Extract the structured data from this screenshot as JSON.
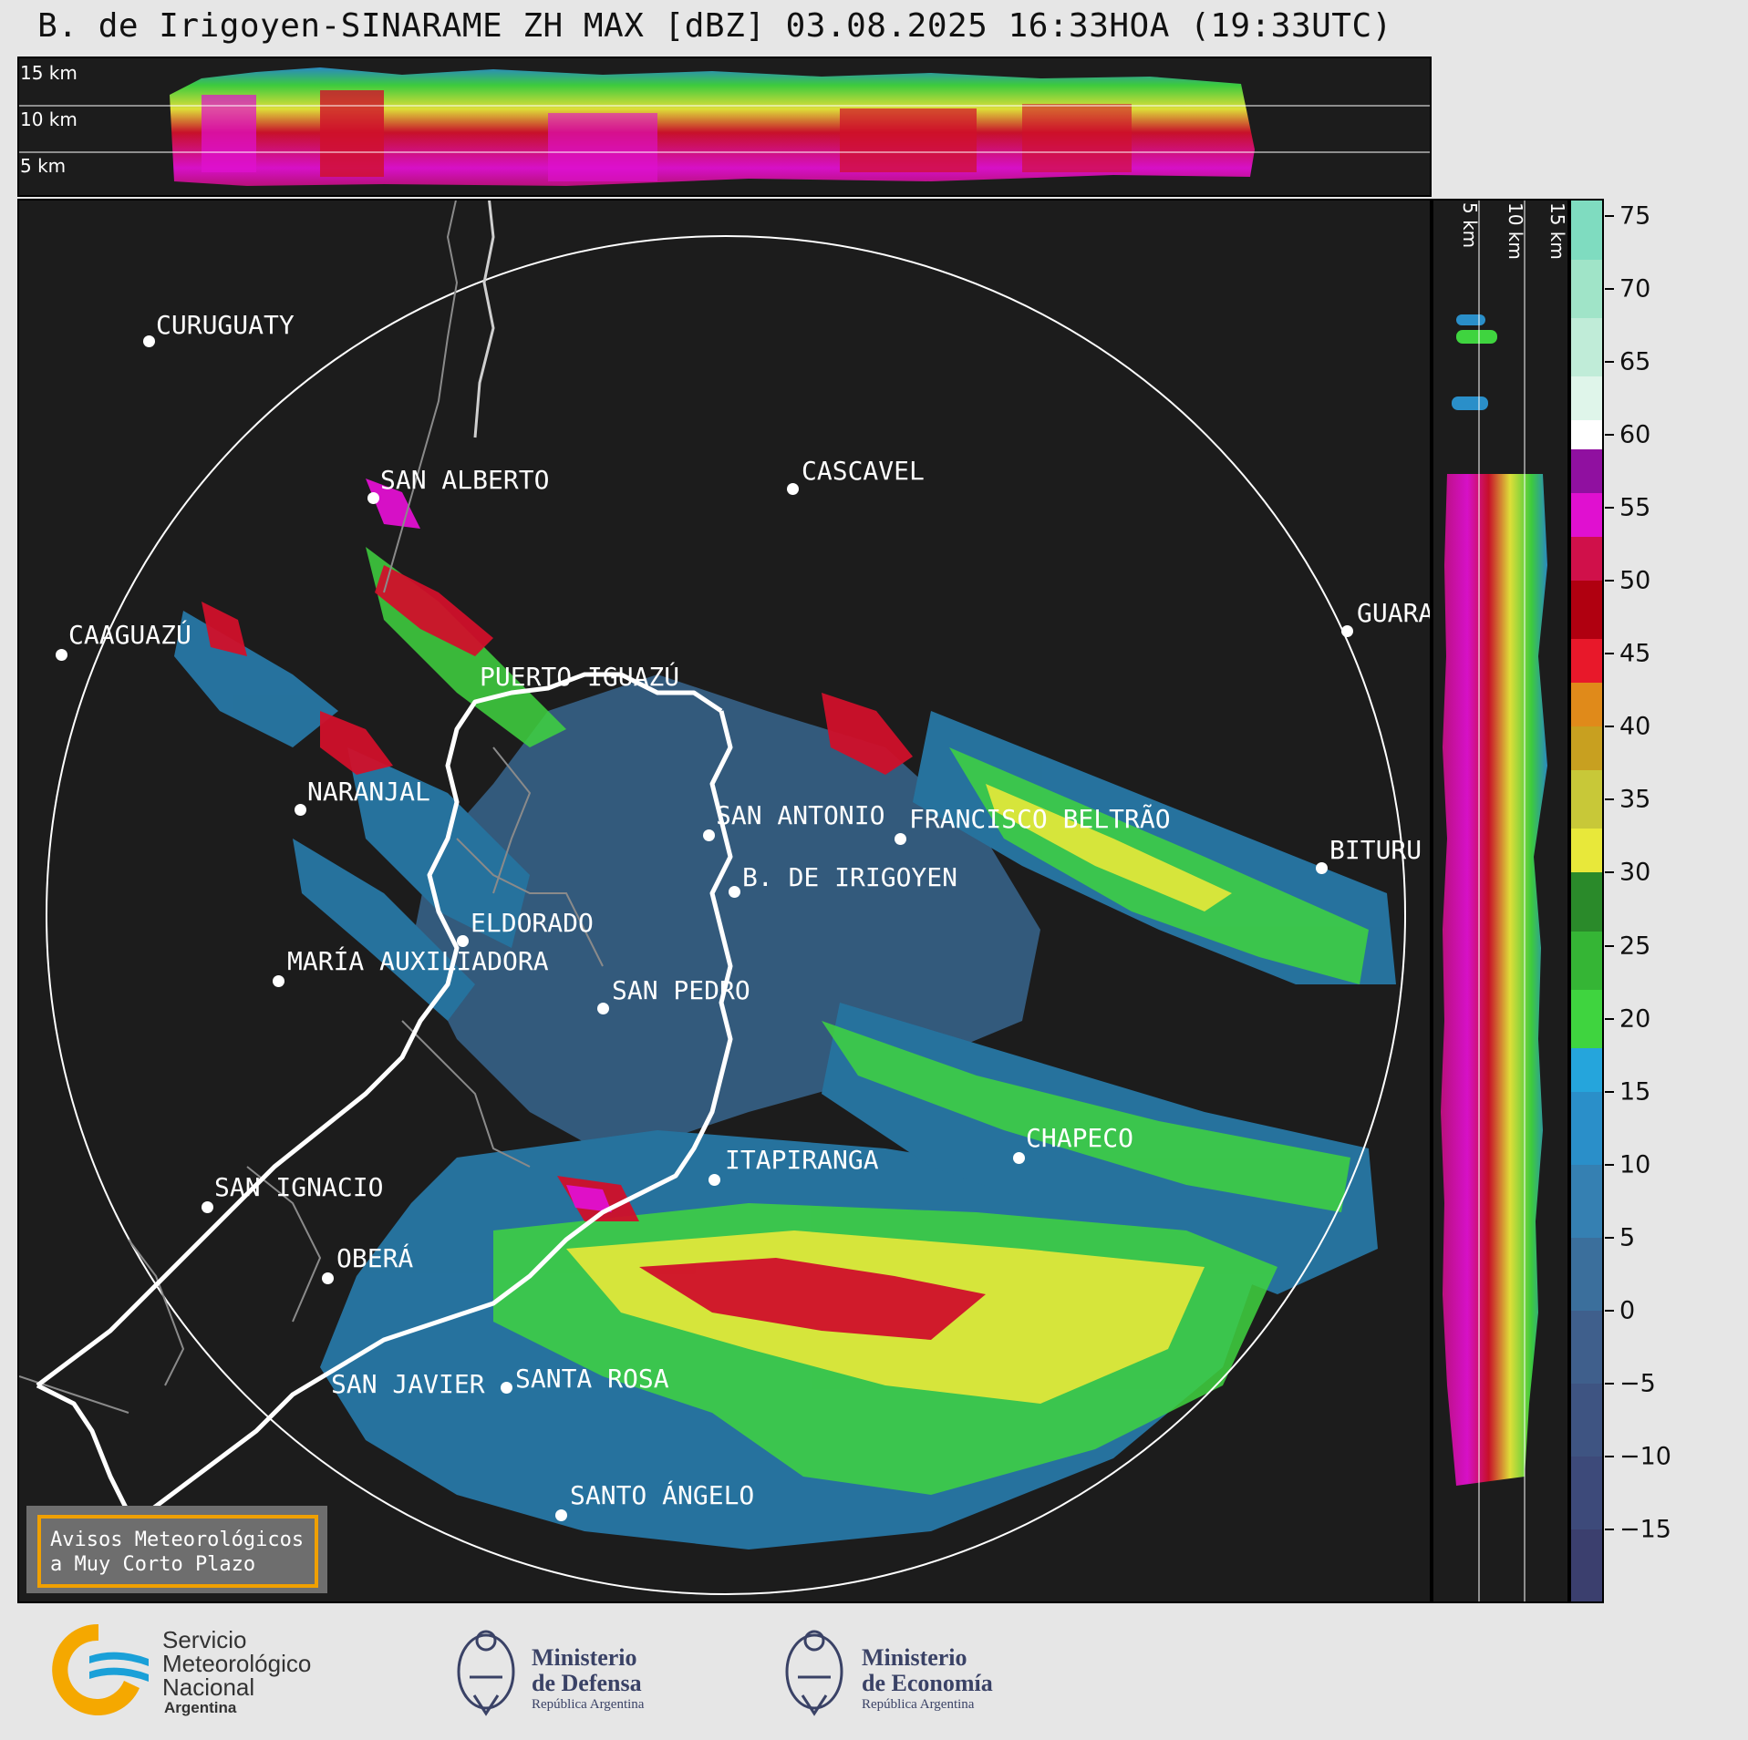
{
  "title": "B. de Irigoyen-SINARAME ZH MAX [dBZ] 03.08.2025 16:33HOA (19:33UTC)",
  "top_section": {
    "height_labels": [
      "15 km",
      "10 km",
      "5 km"
    ]
  },
  "side_section": {
    "height_labels": [
      "5 km",
      "10 km",
      "15 km"
    ]
  },
  "cities": [
    {
      "name": "CURUGUATY"
    },
    {
      "name": "SAN ALBERTO"
    },
    {
      "name": "CASCAVEL"
    },
    {
      "name": "CAAGUAZÚ"
    },
    {
      "name": "GUARA"
    },
    {
      "name": "PUERTO IGUAZÚ"
    },
    {
      "name": "NARANJAL"
    },
    {
      "name": "SAN ANTONIO"
    },
    {
      "name": "FRANCISCO BELTRÃO"
    },
    {
      "name": "BITURU"
    },
    {
      "name": "B. DE IRIGOYEN"
    },
    {
      "name": "ELDORADO"
    },
    {
      "name": "MARÍA AUXILIADORA"
    },
    {
      "name": "SAN PEDRO"
    },
    {
      "name": "CHAPECO"
    },
    {
      "name": "ITAPIRANGA"
    },
    {
      "name": "SAN IGNACIO"
    },
    {
      "name": "OBERÁ"
    },
    {
      "name": "SAN JAVIER"
    },
    {
      "name": "SANTA ROSA"
    },
    {
      "name": "SANTO ÁNGELO"
    }
  ],
  "colorbar": {
    "unit": "dBZ",
    "min": -20,
    "max": 76,
    "ticks": [
      "75",
      "70",
      "65",
      "60",
      "55",
      "50",
      "45",
      "40",
      "35",
      "30",
      "25",
      "20",
      "15",
      "10",
      "5",
      "0",
      "−5",
      "−10",
      "−15"
    ],
    "colors": {
      "bg": "#1c1c1c",
      "low": "#3b3f6e",
      "blue": "#2a8fc9",
      "green": "#3fd43f",
      "yellow": "#e8e83a",
      "orange": "#e08a1a",
      "red": "#d0102a",
      "magenta": "#e010d0",
      "white": "#ffffff",
      "teal": "#7fdcc0"
    }
  },
  "avisos": {
    "line1": "Avisos Meteorológicos",
    "line2": "a Muy Corto Plazo"
  },
  "logos": {
    "smn_line1": "Servicio",
    "smn_line2": "Meteorológico",
    "smn_line3": "Nacional",
    "smn_line4": "Argentina",
    "defensa_line1": "Ministerio",
    "defensa_line2": "de Defensa",
    "defensa_sub": "República Argentina",
    "economia_line1": "Ministerio",
    "economia_line2": "de Economía",
    "economia_sub": "República Argentina"
  }
}
